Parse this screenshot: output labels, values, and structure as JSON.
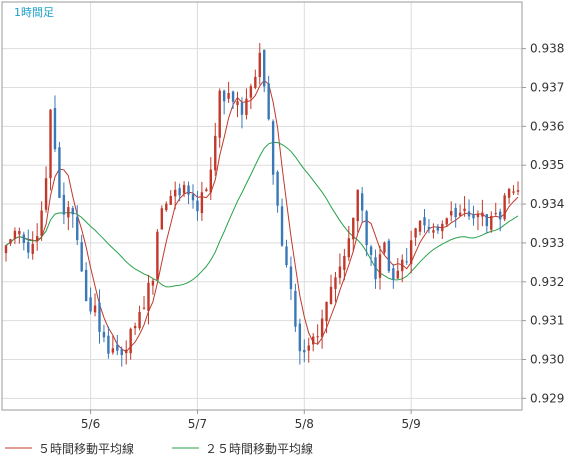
{
  "chart_data": {
    "type": "candlestick",
    "title": "1時間足",
    "xlabel": "",
    "ylabel": "",
    "ylim": [
      0.9287,
      0.9392
    ],
    "y_ticks": [
      "0.938",
      "0.937",
      "0.936",
      "0.935",
      "0.934",
      "0.933",
      "0.932",
      "0.931",
      "0.930",
      "0.929"
    ],
    "y_tick_values": [
      0.938,
      0.937,
      0.936,
      0.935,
      0.934,
      0.933,
      0.932,
      0.931,
      0.93,
      0.929
    ],
    "x_ticks": [
      {
        "label": "5/6",
        "index": 19
      },
      {
        "label": "5/7",
        "index": 43
      },
      {
        "label": "5/8",
        "index": 67
      },
      {
        "label": "5/9",
        "index": 91
      }
    ],
    "candle_count": 116,
    "anchors": [
      [
        0,
        0.9329
      ],
      [
        3,
        0.9333
      ],
      [
        5,
        0.9326
      ],
      [
        7,
        0.9332
      ],
      [
        9,
        0.9346
      ],
      [
        10,
        0.9364
      ],
      [
        12,
        0.934
      ],
      [
        15,
        0.9337
      ],
      [
        18,
        0.9316
      ],
      [
        20,
        0.9312
      ],
      [
        22,
        0.9305
      ],
      [
        24,
        0.9302
      ],
      [
        26,
        0.93
      ],
      [
        28,
        0.9306
      ],
      [
        30,
        0.9312
      ],
      [
        33,
        0.9322
      ],
      [
        35,
        0.9341
      ],
      [
        37,
        0.9342
      ],
      [
        40,
        0.9344
      ],
      [
        43,
        0.9339
      ],
      [
        46,
        0.9348
      ],
      [
        48,
        0.9368
      ],
      [
        51,
        0.9368
      ],
      [
        53,
        0.9364
      ],
      [
        55,
        0.9369
      ],
      [
        57,
        0.938
      ],
      [
        58,
        0.937
      ],
      [
        59,
        0.9364
      ],
      [
        60,
        0.9348
      ],
      [
        62,
        0.9328
      ],
      [
        64,
        0.9318
      ],
      [
        66,
        0.9303
      ],
      [
        68,
        0.9304
      ],
      [
        70,
        0.9306
      ],
      [
        72,
        0.9314
      ],
      [
        74,
        0.9322
      ],
      [
        77,
        0.933
      ],
      [
        79,
        0.9345
      ],
      [
        81,
        0.933
      ],
      [
        83,
        0.9322
      ],
      [
        85,
        0.9328
      ],
      [
        87,
        0.9319
      ],
      [
        89,
        0.9324
      ],
      [
        91,
        0.933
      ],
      [
        93,
        0.9335
      ],
      [
        95,
        0.9334
      ],
      [
        97,
        0.9335
      ],
      [
        99,
        0.9337
      ],
      [
        101,
        0.9336
      ],
      [
        103,
        0.9339
      ],
      [
        105,
        0.9335
      ],
      [
        107,
        0.9336
      ],
      [
        109,
        0.9335
      ],
      [
        111,
        0.9338
      ],
      [
        113,
        0.9343
      ],
      [
        115,
        0.9342
      ]
    ],
    "noise_amplitude": 0.00045,
    "series": [
      {
        "name": "５時間移動平均線",
        "period": 5,
        "color": "#c0392b"
      },
      {
        "name": "２５時間移動平均線",
        "period": 25,
        "color": "#27a24a"
      }
    ],
    "up_color": "#c0392b",
    "down_color": "#3a78b8",
    "grid": true,
    "legend_position": "bottom"
  },
  "legend": {
    "ma5_label": "５時間移動平均線",
    "ma25_label": "２５時間移動平均線"
  }
}
